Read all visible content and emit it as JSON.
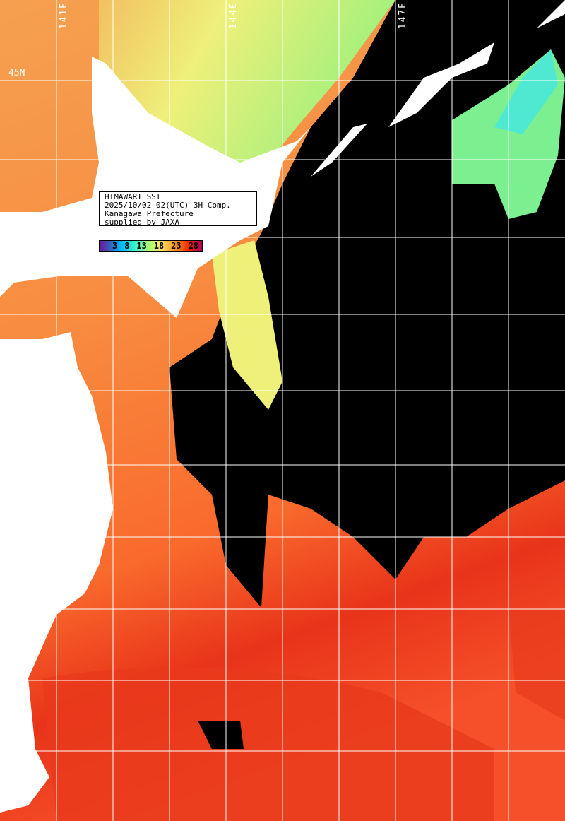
{
  "info_box": {
    "line1": "HIMAWARI SST",
    "line2": "2025/10/02 02(UTC) 3H Comp.",
    "line3": "Kanagawa Prefecture",
    "line4": "supplied by JAXA"
  },
  "color_scale": {
    "ticks": [
      "3",
      "8",
      "13",
      "18",
      "23",
      "28"
    ],
    "colors": [
      "#6a1b9a",
      "#00b7ff",
      "#3ff5c8",
      "#b8ff6a",
      "#ffe066",
      "#ff8c1a",
      "#e82000",
      "#b0005a"
    ]
  },
  "grid_labels": {
    "lon1": "141E",
    "lon2": "144E",
    "lon3": "147E",
    "lat1": "45N"
  },
  "colors": {
    "land": "#ffffff",
    "cloud": "#000000",
    "grid": "#ffffff"
  }
}
